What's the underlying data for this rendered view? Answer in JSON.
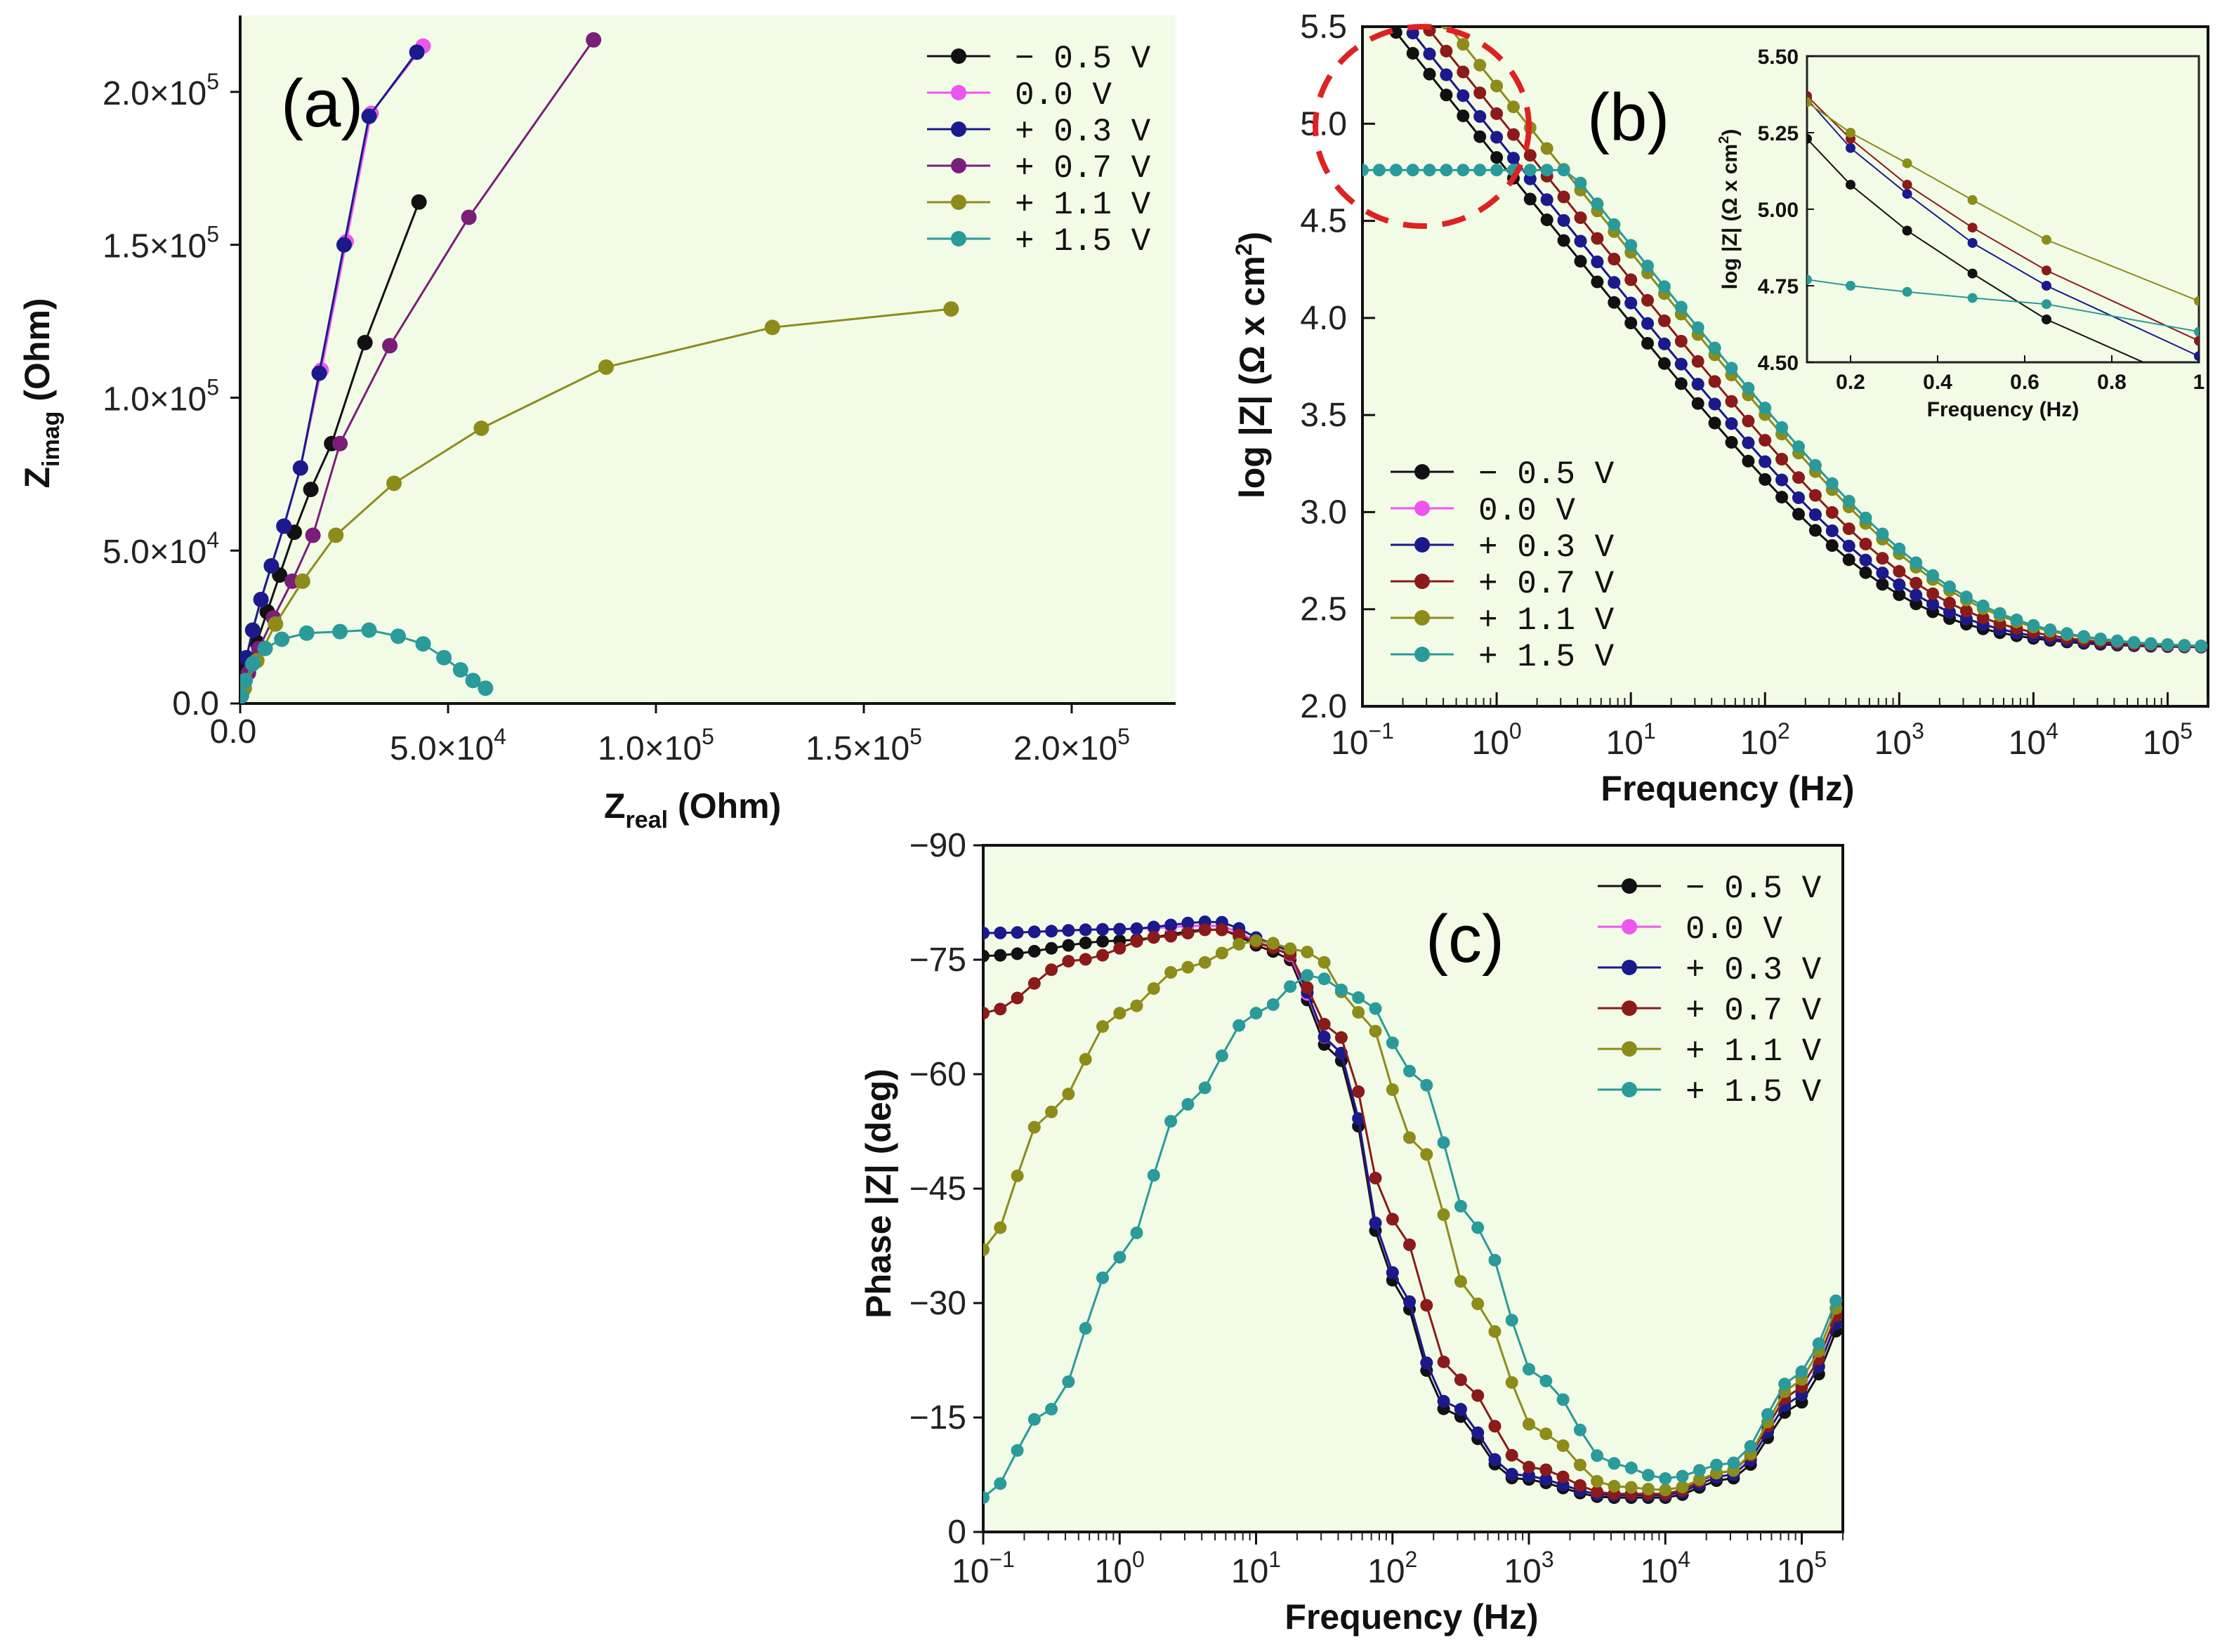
{
  "chart_data": [
    {
      "id": "a",
      "type": "scatter",
      "panel_label": "(a)",
      "xlabel": "Z",
      "xlabel_sub": "real",
      "xlabel_unit": "(Ohm)",
      "ylabel": "Z",
      "ylabel_sub": "imag",
      "ylabel_unit": "(Ohm)",
      "xlim": [
        0,
        225000
      ],
      "ylim": [
        0,
        225000
      ],
      "x_ticks": [
        {
          "value": 0,
          "label": "0.0"
        },
        {
          "value": 50000,
          "label": "5.0×10⁴"
        },
        {
          "value": 100000,
          "label": "1.0×10⁵"
        },
        {
          "value": 150000,
          "label": "1.5×10⁵"
        },
        {
          "value": 200000,
          "label": "2.0×10⁵"
        }
      ],
      "y_ticks": [
        {
          "value": 0,
          "label": "0.0"
        },
        {
          "value": 50000,
          "label": "5.0×10⁴"
        },
        {
          "value": 100000,
          "label": "1.0×10⁵"
        },
        {
          "value": 150000,
          "label": "1.5×10⁵"
        },
        {
          "value": 200000,
          "label": "2.0×10⁵"
        }
      ],
      "legend_position": "top-right",
      "series": [
        {
          "name": "− 0.5 V",
          "color": "#111111",
          "x": [
            500,
            2000,
            4000,
            6500,
            9500,
            13000,
            17000,
            22000,
            30000,
            43000
          ],
          "y": [
            5000,
            12000,
            20000,
            30000,
            42000,
            56000,
            70000,
            85000,
            118000,
            164000
          ]
        },
        {
          "name": "0.0 V",
          "color": "#ee55ee",
          "x": [
            500,
            1500,
            3000,
            5000,
            7500,
            10500,
            14500,
            19500,
            25500,
            31500,
            44000
          ],
          "y": [
            7000,
            15000,
            24000,
            34000,
            45000,
            58000,
            77000,
            109000,
            151000,
            193000,
            215000
          ]
        },
        {
          "name": "+ 0.3 V",
          "color": "#1a1a8c",
          "x": [
            500,
            1500,
            3000,
            5000,
            7500,
            10500,
            14500,
            19000,
            25000,
            31000,
            42500
          ],
          "y": [
            7000,
            15000,
            24000,
            34000,
            45000,
            58000,
            77000,
            108000,
            150000,
            192000,
            213000
          ]
        },
        {
          "name": "+ 0.7 V",
          "color": "#7a1e7a",
          "x": [
            500,
            2000,
            4500,
            8000,
            12500,
            17500,
            24000,
            36000,
            55000,
            85000
          ],
          "y": [
            4000,
            10000,
            18000,
            28000,
            40000,
            55000,
            85000,
            117000,
            159000,
            217000
          ]
        },
        {
          "name": "+ 1.1 V",
          "color": "#8c8c1a",
          "x": [
            1000,
            4000,
            8500,
            15000,
            23000,
            37000,
            58000,
            88000,
            128000,
            171000
          ],
          "y": [
            5000,
            14000,
            26000,
            40000,
            55000,
            72000,
            90000,
            110000,
            123000,
            129000
          ]
        },
        {
          "name": "+ 1.5 V",
          "color": "#2a9a9a",
          "x": [
            300,
            1200,
            3000,
            6000,
            10000,
            16000,
            24000,
            31000,
            38000,
            44000,
            49000,
            53000,
            56000,
            59000
          ],
          "y": [
            2500,
            7500,
            13000,
            18000,
            21000,
            23000,
            23500,
            24000,
            22000,
            19500,
            15000,
            11000,
            7500,
            5000
          ]
        }
      ]
    },
    {
      "id": "b",
      "type": "line",
      "panel_label": "(b)",
      "xlabel": "Frequency (Hz)",
      "ylabel": "log |Z| (Ω x cm²)",
      "x_scale": "log",
      "xlim": [
        0.1,
        200000
      ],
      "ylim": [
        2.0,
        5.5
      ],
      "x_ticks": [
        {
          "value": 0.1,
          "base": "10",
          "exp": "−1"
        },
        {
          "value": 1,
          "base": "10",
          "exp": "0"
        },
        {
          "value": 10,
          "base": "10",
          "exp": "1"
        },
        {
          "value": 100,
          "base": "10",
          "exp": "2"
        },
        {
          "value": 1000,
          "base": "10",
          "exp": "3"
        },
        {
          "value": 10000,
          "base": "10",
          "exp": "4"
        },
        {
          "value": 100000,
          "base": "10",
          "exp": "5"
        }
      ],
      "y_ticks": [
        {
          "value": 2.0,
          "label": "2.0"
        },
        {
          "value": 2.5,
          "label": "2.5"
        },
        {
          "value": 3.0,
          "label": "3.0"
        },
        {
          "value": 3.5,
          "label": "3.5"
        },
        {
          "value": 4.0,
          "label": "4.0"
        },
        {
          "value": 4.5,
          "label": "4.5"
        },
        {
          "value": 5.0,
          "label": "5.0"
        },
        {
          "value": 5.5,
          "label": "5.5"
        }
      ],
      "legend_position": "bottom-left",
      "annotation": "dashed red circle highlighting the low-frequency region",
      "series": [
        {
          "name": "− 0.5 V",
          "color": "#111111",
          "lowf_offset": -0.05,
          "fc": 75000
        },
        {
          "name": "0.0 V",
          "color": "#ee55ee",
          "lowf_offset": 0.0,
          "fc": 85000
        },
        {
          "name": "+ 0.3 V",
          "color": "#1a1a8c",
          "lowf_offset": 0.0,
          "fc": 85000
        },
        {
          "name": "+ 0.7 V",
          "color": "#8b1a1a",
          "lowf_offset": 0.03,
          "fc": 105000
        },
        {
          "name": "+ 1.1 V",
          "color": "#8c8c1a",
          "lowf_offset": 0.08,
          "fc": 130000
        },
        {
          "name": "+ 1.5 V",
          "color": "#2a9a9a",
          "lowf_plateau": 4.76,
          "fc": 170000
        }
      ],
      "inset": {
        "xlabel": "Frequency (Hz)",
        "ylabel": "log |Z| (Ω x cm²)",
        "xlim": [
          0.1,
          1.0
        ],
        "ylim": [
          4.5,
          5.5
        ],
        "x_ticks": [
          {
            "value": 0.2,
            "label": "0.2"
          },
          {
            "value": 0.4,
            "label": "0.4"
          },
          {
            "value": 0.6,
            "label": "0.6"
          },
          {
            "value": 0.8,
            "label": "0.8"
          },
          {
            "value": 1.0,
            "label": "1"
          }
        ],
        "y_ticks": [
          {
            "value": 4.5,
            "label": "4.50"
          },
          {
            "value": 4.75,
            "label": "4.75"
          },
          {
            "value": 5.0,
            "label": "5.00"
          },
          {
            "value": 5.25,
            "label": "5.25"
          },
          {
            "value": 5.5,
            "label": "5.50"
          }
        ],
        "series": [
          {
            "name": "− 0.5 V",
            "color": "#111111",
            "x": [
              0.1,
              0.2,
              0.33,
              0.48,
              0.65,
              1.0
            ],
            "y": [
              5.23,
              5.08,
              4.93,
              4.79,
              4.64,
              4.42
            ]
          },
          {
            "name": "+ 0.3 V",
            "color": "#1a1a8c",
            "x": [
              0.1,
              0.2,
              0.33,
              0.48,
              0.65,
              1.0
            ],
            "y": [
              5.36,
              5.2,
              5.05,
              4.89,
              4.75,
              4.52
            ]
          },
          {
            "name": "+ 0.7 V",
            "color": "#8b1a1a",
            "x": [
              0.1,
              0.2,
              0.33,
              0.48,
              0.65,
              1.0
            ],
            "y": [
              5.37,
              5.23,
              5.08,
              4.94,
              4.8,
              4.57
            ]
          },
          {
            "name": "+ 1.1 V",
            "color": "#8c8c1a",
            "x": [
              0.1,
              0.2,
              0.33,
              0.48,
              0.65,
              1.0
            ],
            "y": [
              5.35,
              5.25,
              5.15,
              5.03,
              4.9,
              4.7
            ]
          },
          {
            "name": "+ 1.5 V",
            "color": "#2a9a9a",
            "x": [
              0.1,
              0.2,
              0.33,
              0.48,
              0.65,
              1.0
            ],
            "y": [
              4.77,
              4.75,
              4.73,
              4.71,
              4.69,
              4.6
            ]
          }
        ]
      }
    },
    {
      "id": "c",
      "type": "line",
      "panel_label": "(c)",
      "xlabel": "Frequency (Hz)",
      "ylabel": "Phase |Z| (deg)",
      "x_scale": "log",
      "xlim": [
        0.1,
        200000
      ],
      "ylim": [
        0,
        -90
      ],
      "x_ticks": [
        {
          "value": 0.1,
          "base": "10",
          "exp": "−1"
        },
        {
          "value": 1,
          "base": "10",
          "exp": "0"
        },
        {
          "value": 10,
          "base": "10",
          "exp": "1"
        },
        {
          "value": 100,
          "base": "10",
          "exp": "2"
        },
        {
          "value": 1000,
          "base": "10",
          "exp": "3"
        },
        {
          "value": 10000,
          "base": "10",
          "exp": "4"
        },
        {
          "value": 100000,
          "base": "10",
          "exp": "5"
        }
      ],
      "y_ticks": [
        {
          "value": 0,
          "label": "0"
        },
        {
          "value": -15,
          "label": "−15"
        },
        {
          "value": -30,
          "label": "−30"
        },
        {
          "value": -45,
          "label": "−45"
        },
        {
          "value": -60,
          "label": "−60"
        },
        {
          "value": -75,
          "label": "−75"
        },
        {
          "value": -90,
          "label": "−90"
        }
      ],
      "legend_position": "top-right",
      "series": [
        {
          "name": "− 0.5 V",
          "color": "#111111",
          "points": [
            [
              0.1,
              -75.5
            ],
            [
              1,
              -77.5
            ],
            [
              5,
              -79
            ],
            [
              15,
              -76
            ],
            [
              40,
              -62
            ],
            [
              100,
              -33
            ],
            [
              250,
              -16
            ],
            [
              800,
              -7
            ],
            [
              4000,
              -4.5
            ],
            [
              10000,
              -4.5
            ],
            [
              30000,
              -7
            ],
            [
              100000,
              -17
            ],
            [
              200000,
              -27
            ]
          ]
        },
        {
          "name": "0.0 V",
          "color": "#ee55ee",
          "points": [
            [
              0.1,
              -78.5
            ],
            [
              1,
              -79
            ],
            [
              5,
              -79.5
            ],
            [
              15,
              -76.5
            ],
            [
              40,
              -63
            ],
            [
              100,
              -34
            ],
            [
              250,
              -17
            ],
            [
              800,
              -7.5
            ],
            [
              4000,
              -4.8
            ],
            [
              10000,
              -4.8
            ],
            [
              30000,
              -7.5
            ],
            [
              100000,
              -18
            ],
            [
              200000,
              -28
            ]
          ]
        },
        {
          "name": "+ 0.3 V",
          "color": "#1a1a8c",
          "points": [
            [
              0.1,
              -78.5
            ],
            [
              1,
              -79
            ],
            [
              5,
              -80
            ],
            [
              15,
              -77
            ],
            [
              40,
              -63
            ],
            [
              100,
              -34
            ],
            [
              250,
              -17
            ],
            [
              800,
              -7.5
            ],
            [
              4000,
              -4.8
            ],
            [
              10000,
              -4.8
            ],
            [
              30000,
              -7.5
            ],
            [
              100000,
              -18
            ],
            [
              200000,
              -28
            ]
          ]
        },
        {
          "name": "+ 0.7 V",
          "color": "#8b1a1a",
          "points": [
            [
              0.1,
              -68
            ],
            [
              0.5,
              -75
            ],
            [
              2,
              -78
            ],
            [
              5,
              -79
            ],
            [
              15,
              -76.5
            ],
            [
              40,
              -65
            ],
            [
              100,
              -41
            ],
            [
              300,
              -20
            ],
            [
              1000,
              -8.5
            ],
            [
              4000,
              -5
            ],
            [
              10000,
              -5
            ],
            [
              30000,
              -8
            ],
            [
              100000,
              -19
            ],
            [
              200000,
              -29
            ]
          ]
        },
        {
          "name": "+ 1.1 V",
          "color": "#8c8c1a",
          "points": [
            [
              0.1,
              -37
            ],
            [
              0.3,
              -55
            ],
            [
              1,
              -68
            ],
            [
              3,
              -74
            ],
            [
              10,
              -77.5
            ],
            [
              25,
              -76
            ],
            [
              60,
              -68
            ],
            [
              150,
              -51
            ],
            [
              400,
              -30
            ],
            [
              1200,
              -13
            ],
            [
              4000,
              -6
            ],
            [
              10000,
              -5.5
            ],
            [
              30000,
              -8
            ],
            [
              100000,
              -20
            ],
            [
              200000,
              -30
            ]
          ]
        },
        {
          "name": "+ 1.5 V",
          "color": "#2a9a9a",
          "points": [
            [
              0.1,
              -4.5
            ],
            [
              0.3,
              -16
            ],
            [
              1,
              -36
            ],
            [
              3,
              -56
            ],
            [
              10,
              -68
            ],
            [
              25,
              -73
            ],
            [
              60,
              -70
            ],
            [
              150,
              -60
            ],
            [
              400,
              -40
            ],
            [
              1200,
              -20
            ],
            [
              4000,
              -9
            ],
            [
              10000,
              -7
            ],
            [
              30000,
              -9
            ],
            [
              100000,
              -21
            ],
            [
              200000,
              -31
            ]
          ]
        }
      ]
    }
  ],
  "background_color": "#f2fbe6",
  "highlight_color": "#dd2222"
}
